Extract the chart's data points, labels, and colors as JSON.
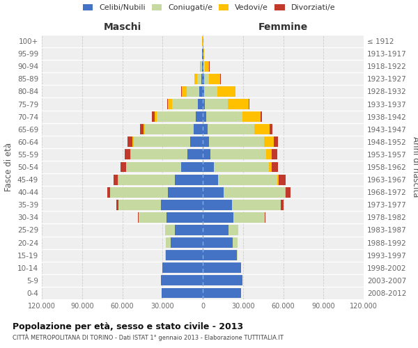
{
  "age_groups": [
    "0-4",
    "5-9",
    "10-14",
    "15-19",
    "20-24",
    "25-29",
    "30-34",
    "35-39",
    "40-44",
    "45-49",
    "50-54",
    "55-59",
    "60-64",
    "65-69",
    "70-74",
    "75-79",
    "80-84",
    "85-89",
    "90-94",
    "95-99",
    "100+"
  ],
  "birth_years": [
    "2008-2012",
    "2003-2007",
    "1998-2002",
    "1993-1997",
    "1988-1992",
    "1983-1987",
    "1978-1982",
    "1973-1977",
    "1968-1972",
    "1963-1967",
    "1958-1962",
    "1953-1957",
    "1948-1952",
    "1943-1947",
    "1938-1942",
    "1933-1937",
    "1928-1932",
    "1923-1927",
    "1918-1922",
    "1913-1917",
    "≤ 1912"
  ],
  "male_celibi": [
    30500,
    31000,
    30000,
    27500,
    24000,
    21000,
    27000,
    31000,
    26000,
    21000,
    16000,
    11500,
    9500,
    7000,
    5200,
    3800,
    2500,
    1200,
    600,
    300,
    150
  ],
  "male_coniugati": [
    80,
    80,
    150,
    400,
    3500,
    7000,
    21000,
    32000,
    43000,
    42000,
    41000,
    42000,
    42000,
    36000,
    29000,
    19000,
    9500,
    3200,
    800,
    250,
    80
  ],
  "male_vedovi": [
    5,
    5,
    8,
    15,
    30,
    30,
    30,
    40,
    80,
    150,
    250,
    400,
    800,
    1200,
    1800,
    3200,
    3800,
    1800,
    650,
    180,
    40
  ],
  "male_divorziati": [
    4,
    4,
    8,
    25,
    70,
    130,
    450,
    1400,
    2300,
    3300,
    3800,
    4200,
    3800,
    2800,
    1800,
    700,
    250,
    90,
    40,
    8,
    3
  ],
  "female_nubili": [
    28500,
    29500,
    28500,
    25500,
    22500,
    19000,
    23000,
    22000,
    15500,
    11500,
    8500,
    5500,
    4500,
    3500,
    2600,
    1700,
    1200,
    900,
    600,
    300,
    150
  ],
  "female_coniugate": [
    80,
    80,
    150,
    400,
    3500,
    7500,
    23000,
    36000,
    46000,
    44000,
    41000,
    42000,
    41000,
    35000,
    27000,
    17000,
    9500,
    3800,
    1100,
    250,
    80
  ],
  "female_vedove": [
    5,
    5,
    8,
    15,
    40,
    40,
    80,
    160,
    400,
    900,
    1800,
    3800,
    7500,
    11500,
    13500,
    15500,
    13500,
    8500,
    3200,
    700,
    40
  ],
  "female_divorziate": [
    4,
    4,
    8,
    25,
    70,
    130,
    550,
    1900,
    3800,
    5200,
    4800,
    4200,
    3200,
    1800,
    900,
    450,
    180,
    90,
    40,
    8,
    3
  ],
  "colors_celibi": "#4472c4",
  "colors_coniugati": "#c5d9a0",
  "colors_vedovi": "#ffc000",
  "colors_divorziati": "#c0392b",
  "xlim": 120000,
  "xtick_vals": [
    -120000,
    -90000,
    -60000,
    -30000,
    0,
    30000,
    60000,
    90000,
    120000
  ],
  "xtick_labels": [
    "120.000",
    "90.000",
    "60.000",
    "30.000",
    "0",
    "30.000",
    "60.000",
    "90.000",
    "120.000"
  ],
  "title": "Popolazione per età, sesso e stato civile - 2013",
  "subtitle": "CITTÀ METROPOLITANA DI TORINO - Dati ISTAT 1° gennaio 2013 - Elaborazione TUTTITALIA.IT",
  "ylabel_left": "Fasce di età",
  "ylabel_right": "Anni di nascita",
  "legend_labels": [
    "Celibi/Nubili",
    "Coniugati/e",
    "Vedovi/e",
    "Divorziati/e"
  ],
  "maschi_label": "Maschi",
  "femmine_label": "Femmine",
  "bg_color": "#efefef"
}
